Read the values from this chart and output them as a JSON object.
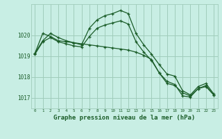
{
  "title": "Graphe pression niveau de la mer (hPa)",
  "background_color": "#c8eee4",
  "grid_color": "#a0ccbb",
  "line_color": "#1a5c28",
  "x_labels": [
    "0",
    "1",
    "2",
    "3",
    "4",
    "5",
    "6",
    "7",
    "8",
    "9",
    "10",
    "11",
    "12",
    "13",
    "14",
    "15",
    "16",
    "17",
    "18",
    "19",
    "20",
    "21",
    "22",
    "23"
  ],
  "ylim": [
    1016.5,
    1021.5
  ],
  "yticks": [
    1017,
    1018,
    1019,
    1020
  ],
  "series": [
    [
      1019.15,
      1019.75,
      1020.1,
      1019.9,
      1019.75,
      1019.65,
      1019.55,
      1020.35,
      1020.75,
      1020.95,
      1021.05,
      1021.2,
      1021.05,
      1020.1,
      1019.55,
      1019.1,
      1018.6,
      1018.15,
      1018.05,
      1017.35,
      1017.15,
      1017.55,
      1017.7,
      1017.2
    ],
    [
      1019.1,
      1019.7,
      1019.9,
      1019.7,
      1019.6,
      1019.5,
      1019.45,
      1019.95,
      1020.35,
      1020.5,
      1020.6,
      1020.7,
      1020.55,
      1019.7,
      1019.2,
      1018.8,
      1018.2,
      1017.8,
      1017.65,
      1017.1,
      1017.05,
      1017.45,
      1017.6,
      1017.15
    ],
    [
      1019.3,
      1019.85,
      1020.2,
      1019.95,
      1019.75,
      1019.65,
      1019.55,
      1020.4,
      1020.8,
      1021.0,
      1021.1,
      1021.25,
      1021.1,
      1020.15,
      1019.6,
      1019.15,
      1018.65,
      1018.2,
      1018.1,
      1017.4,
      1017.2,
      1017.6,
      1017.75,
      1017.25
    ]
  ],
  "series2": [
    [
      1019.15,
      1020.1,
      1019.95,
      1019.75,
      1019.7,
      1019.65,
      1019.6,
      1019.6,
      1019.55,
      1019.5,
      1019.45,
      1019.4,
      1019.3,
      1019.15,
      1019.0,
      1018.8,
      1018.15,
      1017.7,
      1017.6,
      1017.25,
      1017.1,
      1017.45,
      1017.55,
      1017.15
    ]
  ]
}
